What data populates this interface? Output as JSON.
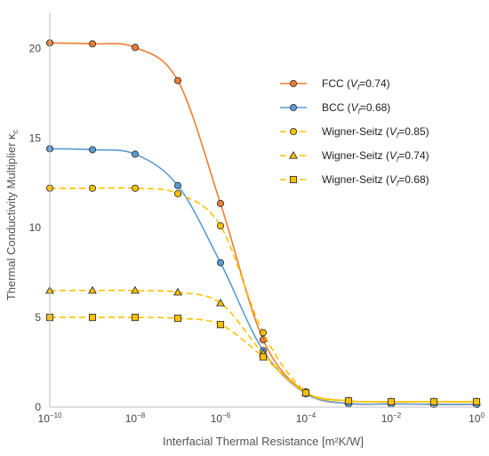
{
  "chart_data": {
    "type": "line",
    "xscale": "log",
    "xlabel": "Interfacial Thermal Resistance [m²K/W]",
    "ylabel": "Thermal Conductivity Multiplier κ",
    "ylabel_sub": "c",
    "xlim": [
      1e-10,
      1
    ],
    "ylim": [
      0,
      22
    ],
    "x_ticks": [
      {
        "value": 1e-10,
        "base": "10",
        "exp": "−10"
      },
      {
        "value": 1e-08,
        "base": "10",
        "exp": "−8"
      },
      {
        "value": 1e-06,
        "base": "10",
        "exp": "−6"
      },
      {
        "value": 0.0001,
        "base": "10",
        "exp": "−4"
      },
      {
        "value": 0.01,
        "base": "10",
        "exp": "−2"
      },
      {
        "value": 1,
        "base": "10",
        "exp": "0"
      }
    ],
    "y_ticks": [
      {
        "value": 0,
        "label": "0"
      },
      {
        "value": 5,
        "label": "5"
      },
      {
        "value": 10,
        "label": "10"
      },
      {
        "value": 15,
        "label": "15"
      },
      {
        "value": 20,
        "label": "20"
      }
    ],
    "grid": false,
    "legend_position": "right",
    "series": [
      {
        "name_pre": "FCC (",
        "name_var": "V",
        "name_sub": "f",
        "name_post": "=0.74)",
        "color": "#ED7D31",
        "marker_fill": "#ED7D31",
        "marker": "circle",
        "line": "solid",
        "x": [
          1e-10,
          1e-09,
          1e-08,
          1e-07,
          1e-06,
          1e-05,
          0.0001,
          0.001,
          0.01,
          0.1,
          1
        ],
        "y": [
          20.3,
          20.25,
          20.05,
          18.2,
          11.35,
          3.75,
          0.8,
          0.2,
          0.18,
          0.15,
          0.15
        ]
      },
      {
        "name_pre": "BCC (",
        "name_var": "V",
        "name_sub": "f",
        "name_post": "=0.68)",
        "color": "#5B9BD5",
        "marker_fill": "#5B9BD5",
        "marker": "circle",
        "line": "solid",
        "x": [
          1e-10,
          1e-09,
          1e-08,
          1e-07,
          1e-06,
          1e-05,
          0.0001,
          0.001,
          0.01,
          0.1,
          1
        ],
        "y": [
          14.4,
          14.35,
          14.1,
          12.35,
          8.05,
          3.15,
          0.75,
          0.2,
          0.18,
          0.15,
          0.15
        ]
      },
      {
        "name_pre": "Wigner-Seitz (",
        "name_var": "V",
        "name_sub": "f",
        "name_post": "=0.85)",
        "color": "#FFC000",
        "marker_fill": "#FFC000",
        "marker": "circle",
        "line": "dashed",
        "x": [
          1e-10,
          1e-09,
          1e-08,
          1e-07,
          1e-06,
          1e-05,
          0.0001,
          0.001,
          0.01,
          0.1,
          1
        ],
        "y": [
          12.2,
          12.2,
          12.2,
          11.9,
          10.1,
          4.15,
          0.85,
          0.35,
          0.3,
          0.3,
          0.3
        ]
      },
      {
        "name_pre": "Wigner-Seitz (",
        "name_var": "V",
        "name_sub": "f",
        "name_post": "=0.74)",
        "color": "#FFC000",
        "marker_fill": "#FFC000",
        "marker": "triangle",
        "line": "dashed",
        "x": [
          1e-10,
          1e-09,
          1e-08,
          1e-07,
          1e-06,
          1e-05,
          0.0001,
          0.001,
          0.01,
          0.1,
          1
        ],
        "y": [
          6.5,
          6.5,
          6.5,
          6.4,
          5.8,
          3.0,
          0.8,
          0.35,
          0.3,
          0.3,
          0.3
        ]
      },
      {
        "name_pre": "Wigner-Seitz (",
        "name_var": "V",
        "name_sub": "f",
        "name_post": "=0.68)",
        "color": "#FFC000",
        "marker_fill": "#FFC000",
        "marker": "square",
        "line": "dashed",
        "x": [
          1e-10,
          1e-09,
          1e-08,
          1e-07,
          1e-06,
          1e-05,
          0.0001,
          0.001,
          0.01,
          0.1,
          1
        ],
        "y": [
          5.0,
          5.0,
          5.0,
          4.95,
          4.6,
          2.8,
          0.8,
          0.35,
          0.3,
          0.3,
          0.3
        ]
      }
    ]
  }
}
